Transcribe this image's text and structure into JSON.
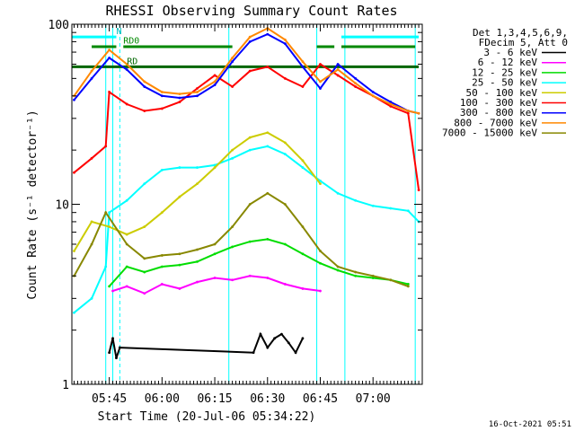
{
  "chart_data": {
    "type": "line",
    "title": "RHESSI Observing Summary Count Rates",
    "xlabel": "Start Time (20-Jul-06 05:34:22)",
    "ylabel": "Count Rate (s⁻¹ detector⁻¹)",
    "yscale": "log",
    "ylim": [
      1,
      100
    ],
    "y_tick_labels": [
      "1",
      "10",
      "100"
    ],
    "xlim": [
      "05:34:22",
      "07:14:00"
    ],
    "x_tick_labels": [
      "05:45",
      "06:00",
      "06:15",
      "06:30",
      "06:45",
      "07:00"
    ],
    "legend_header": [
      "Det 1,3,4,5,6,9,",
      "FDecim 5, Att 0"
    ],
    "legend_position": "right",
    "annotations": [
      "N",
      "RD0",
      "RD"
    ],
    "footer": "16-Oct-2021 05:51",
    "series": [
      {
        "name": "3 - 6 keV",
        "color": "#000000",
        "x": [
          "05:45",
          "05:46",
          "05:47",
          "05:48",
          "06:26",
          "06:28",
          "06:30",
          "06:32",
          "06:34",
          "06:36",
          "06:38",
          "06:40"
        ],
        "y": [
          1.5,
          1.8,
          1.4,
          1.6,
          1.5,
          1.9,
          1.6,
          1.8,
          1.9,
          1.7,
          1.5,
          1.8
        ]
      },
      {
        "name": "6 - 12 keV",
        "color": "#ff00ff",
        "x": [
          "05:46",
          "05:50",
          "05:55",
          "06:00",
          "06:05",
          "06:10",
          "06:15",
          "06:20",
          "06:25",
          "06:30",
          "06:35",
          "06:40",
          "06:45"
        ],
        "y": [
          3.3,
          3.5,
          3.2,
          3.6,
          3.4,
          3.7,
          3.9,
          3.8,
          4.0,
          3.9,
          3.6,
          3.4,
          3.3
        ]
      },
      {
        "name": "12 - 25 keV",
        "color": "#00dd00",
        "x": [
          "05:45",
          "05:50",
          "05:55",
          "06:00",
          "06:05",
          "06:10",
          "06:15",
          "06:20",
          "06:25",
          "06:30",
          "06:35",
          "06:40",
          "06:45",
          "06:50",
          "06:55",
          "07:00",
          "07:05",
          "07:10"
        ],
        "y": [
          3.5,
          4.5,
          4.2,
          4.5,
          4.6,
          4.8,
          5.3,
          5.8,
          6.2,
          6.4,
          6.0,
          5.3,
          4.7,
          4.3,
          4.0,
          3.9,
          3.8,
          3.6
        ]
      },
      {
        "name": "25 - 50 keV",
        "color": "#00ffff",
        "x": [
          "05:35",
          "05:40",
          "05:44",
          "05:45",
          "05:50",
          "05:55",
          "06:00",
          "06:05",
          "06:10",
          "06:15",
          "06:20",
          "06:25",
          "06:30",
          "06:35",
          "06:40",
          "06:45",
          "06:50",
          "06:55",
          "07:00",
          "07:05",
          "07:10",
          "07:13"
        ],
        "y": [
          2.5,
          3.0,
          4.5,
          9.0,
          10.5,
          13.0,
          15.5,
          16.0,
          16.0,
          16.5,
          18.0,
          20.0,
          21.0,
          19.0,
          16.0,
          13.5,
          11.5,
          10.5,
          9.8,
          9.5,
          9.2,
          8.0
        ]
      },
      {
        "name": "50 - 100 keV",
        "color": "#cccc00",
        "x": [
          "05:35",
          "05:40",
          "05:45",
          "05:50",
          "05:55",
          "06:00",
          "06:05",
          "06:10",
          "06:15",
          "06:20",
          "06:25",
          "06:30",
          "06:35",
          "06:40",
          "06:45"
        ],
        "y": [
          5.5,
          8.0,
          7.5,
          6.8,
          7.5,
          9.0,
          11.0,
          13.0,
          16.0,
          20.0,
          23.5,
          25.0,
          22.0,
          17.5,
          13.0
        ]
      },
      {
        "name": "100 - 300 keV",
        "color": "#ff0000",
        "x": [
          "05:35",
          "05:40",
          "05:44",
          "05:45",
          "05:50",
          "05:55",
          "06:00",
          "06:05",
          "06:10",
          "06:15",
          "06:20",
          "06:25",
          "06:30",
          "06:35",
          "06:40",
          "06:45",
          "06:50",
          "06:55",
          "07:00",
          "07:05",
          "07:10",
          "07:13"
        ],
        "y": [
          15.0,
          18.0,
          21.0,
          42.0,
          36.0,
          33.0,
          34.0,
          37.0,
          44.0,
          52.0,
          45.0,
          55.0,
          58.0,
          50.0,
          45.0,
          60.0,
          52.0,
          45.0,
          40.0,
          35.0,
          32.0,
          12.0
        ]
      },
      {
        "name": "300 - 800 keV",
        "color": "#0000ff",
        "x": [
          "05:35",
          "05:40",
          "05:45",
          "05:50",
          "05:55",
          "06:00",
          "06:05",
          "06:10",
          "06:15",
          "06:20",
          "06:25",
          "06:30",
          "06:35",
          "06:40",
          "06:45",
          "06:50",
          "06:55",
          "07:00",
          "07:05",
          "07:10",
          "07:13"
        ],
        "y": [
          38.0,
          50.0,
          65.0,
          56.0,
          45.0,
          40.0,
          39.0,
          40.0,
          46.0,
          62.0,
          80.0,
          88.0,
          78.0,
          58.0,
          44.0,
          60.0,
          50.0,
          42.0,
          37.0,
          33.0,
          32.0
        ]
      },
      {
        "name": "800 - 7000 keV",
        "color": "#ff8800",
        "x": [
          "05:35",
          "05:40",
          "05:45",
          "05:50",
          "05:55",
          "06:00",
          "06:05",
          "06:10",
          "06:15",
          "06:20",
          "06:25",
          "06:30",
          "06:35",
          "06:40",
          "06:45",
          "06:50",
          "06:55",
          "07:00",
          "07:05",
          "07:10",
          "07:13"
        ],
        "y": [
          40.0,
          55.0,
          72.0,
          60.0,
          48.0,
          42.0,
          41.0,
          42.0,
          48.0,
          65.0,
          85.0,
          95.0,
          82.0,
          62.0,
          48.0,
          56.0,
          47.0,
          40.0,
          36.0,
          33.0,
          32.0
        ]
      },
      {
        "name": "7000 - 15000 keV",
        "color": "#888800",
        "x": [
          "05:35",
          "05:40",
          "05:44",
          "05:50",
          "05:55",
          "06:00",
          "06:05",
          "06:10",
          "06:15",
          "06:20",
          "06:25",
          "06:30",
          "06:35",
          "06:40",
          "06:45",
          "06:50",
          "06:55",
          "07:00",
          "07:05",
          "07:10"
        ],
        "y": [
          4.0,
          6.0,
          9.0,
          6.0,
          5.0,
          5.2,
          5.3,
          5.6,
          6.0,
          7.5,
          10.0,
          11.5,
          10.0,
          7.5,
          5.5,
          4.5,
          4.2,
          4.0,
          3.8,
          3.5
        ]
      }
    ],
    "flags": [
      {
        "name": "N",
        "color": "#00ffff",
        "value": 85,
        "segments": [
          [
            "05:34:22",
            "05:47"
          ],
          [
            "06:51",
            "07:13"
          ]
        ]
      },
      {
        "name": "RD0",
        "color": "#008800",
        "value": 75,
        "segments": [
          [
            "05:40",
            "05:47"
          ],
          [
            "05:49",
            "06:20"
          ],
          [
            "06:44",
            "06:49"
          ],
          [
            "06:51",
            "07:12"
          ]
        ]
      },
      {
        "name": "RD",
        "color": "#006600",
        "value": 58,
        "segments": [
          [
            "05:34:22",
            "05:49"
          ],
          [
            "05:49",
            "06:20"
          ],
          [
            "06:20",
            "06:44"
          ],
          [
            "06:44",
            "07:13"
          ]
        ]
      }
    ],
    "vertical_markers": {
      "solid_cyan": [
        "05:34:22",
        "05:44",
        "05:46",
        "06:19",
        "06:44",
        "06:52",
        "07:12"
      ],
      "dashed_cyan": [
        "05:48",
        "07:14"
      ]
    }
  }
}
